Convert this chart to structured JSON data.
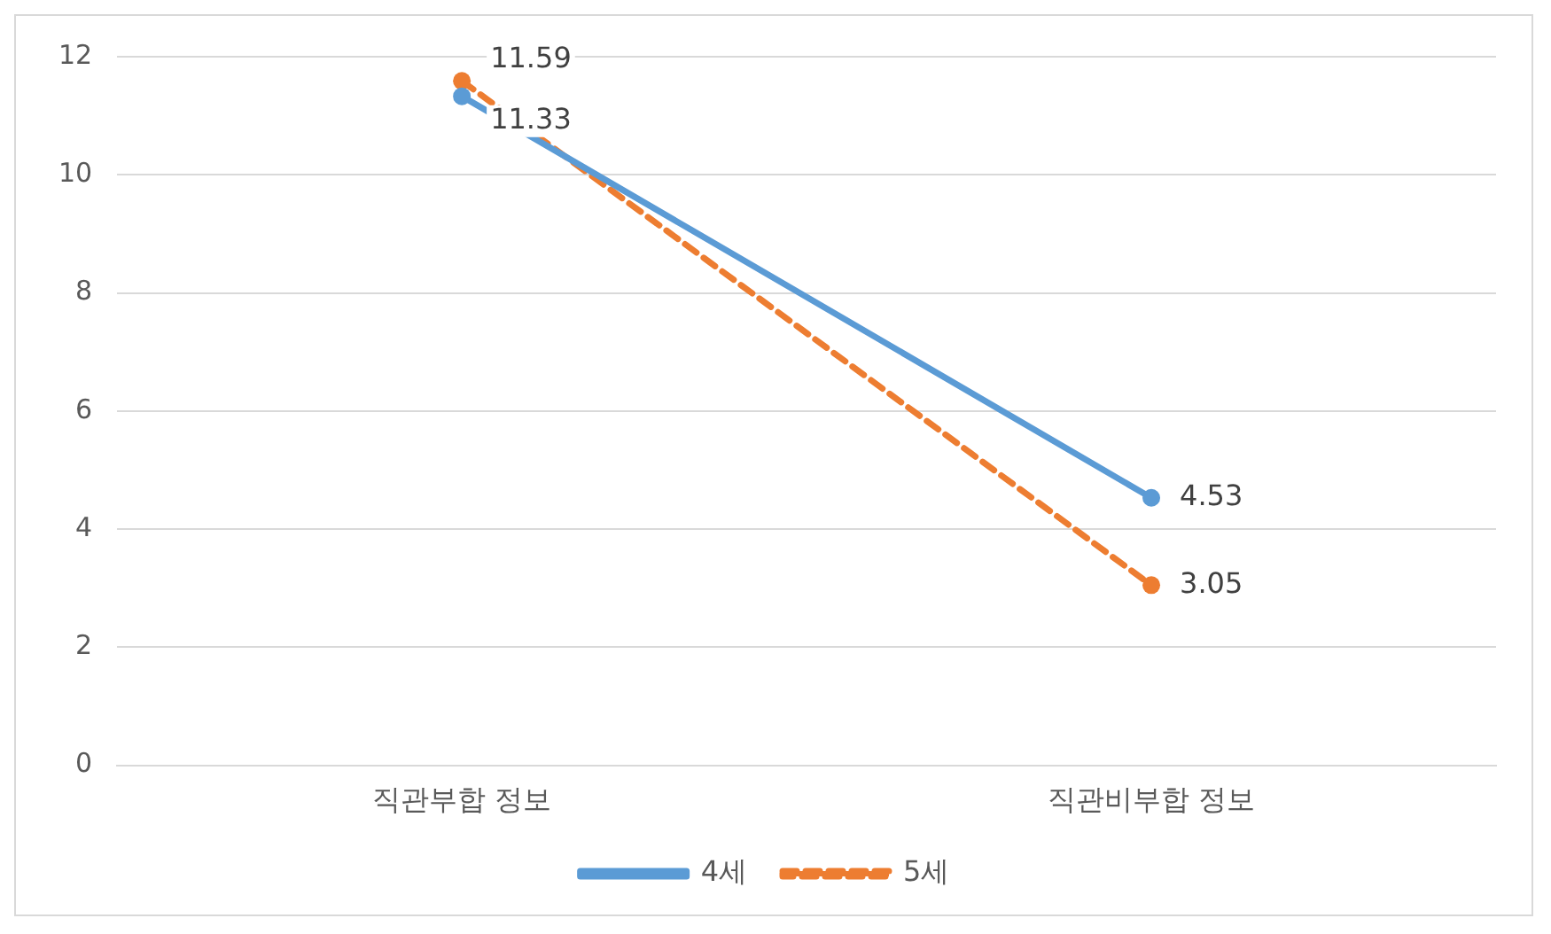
{
  "chart_data": {
    "type": "line",
    "categories": [
      "직관부합 정보",
      "직관비부합 정보"
    ],
    "series": [
      {
        "name": "4세",
        "color": "#5b9bd5",
        "values": [
          11.33,
          4.53
        ],
        "line_style": "solid"
      },
      {
        "name": "5세",
        "color": "#ed7d31",
        "values": [
          11.59,
          3.05
        ],
        "line_style": "dashed"
      }
    ],
    "ylim": [
      0,
      12
    ],
    "yticks": [
      0,
      2,
      4,
      6,
      8,
      10,
      12
    ],
    "grid": "y",
    "legend": "bottom",
    "marker": "circle",
    "data_labels": true
  }
}
